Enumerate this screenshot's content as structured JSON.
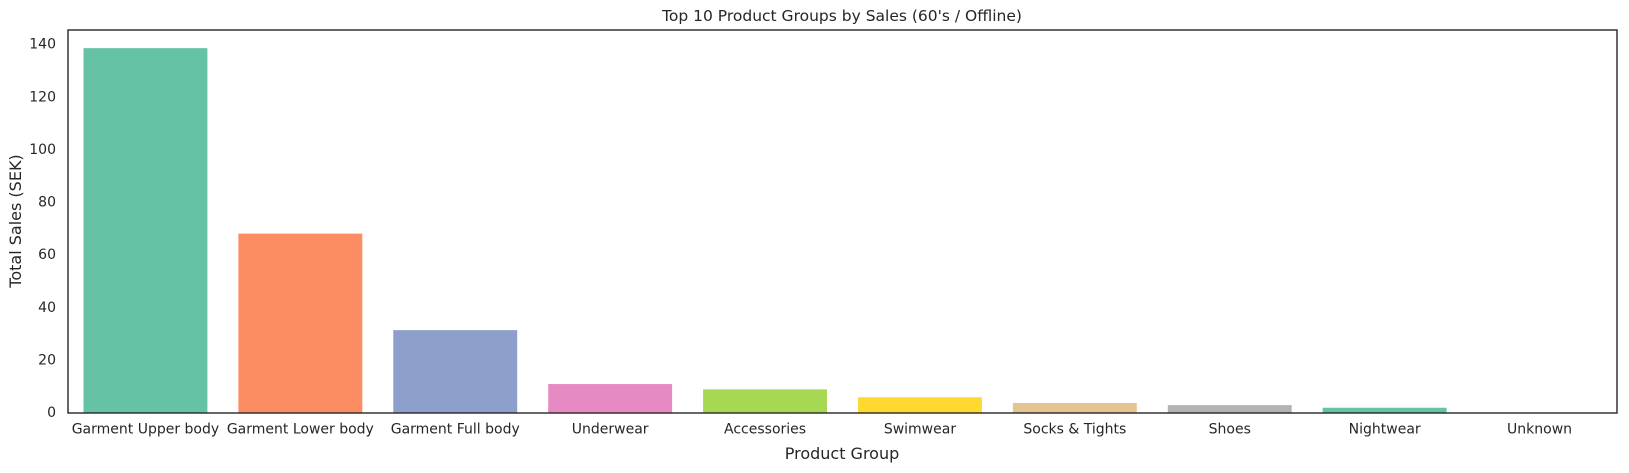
{
  "chart_data": {
    "type": "bar",
    "title": "Top 10 Product Groups by Sales (60's / Offline)",
    "xlabel": "Product Group",
    "ylabel": "Total Sales (SEK)",
    "categories": [
      "Garment Upper body",
      "Garment Lower body",
      "Garment Full body",
      "Underwear",
      "Accessories",
      "Swimwear",
      "Socks & Tights",
      "Shoes",
      "Nightwear",
      "Unknown"
    ],
    "values": [
      138.7,
      68.2,
      31.5,
      11.0,
      9.0,
      6.0,
      3.8,
      3.0,
      2.0,
      0.1
    ],
    "colors": [
      "#66c2a5",
      "#fc8d62",
      "#8da0cb",
      "#e78ac3",
      "#a6d854",
      "#ffd92f",
      "#e5c494",
      "#b3b3b3",
      "#66c2a5",
      "#fc8d62"
    ],
    "ylim": [
      0,
      145.6
    ],
    "yticks": [
      0,
      20,
      40,
      60,
      80,
      100,
      120,
      140
    ],
    "grid": false,
    "legend": "none"
  }
}
